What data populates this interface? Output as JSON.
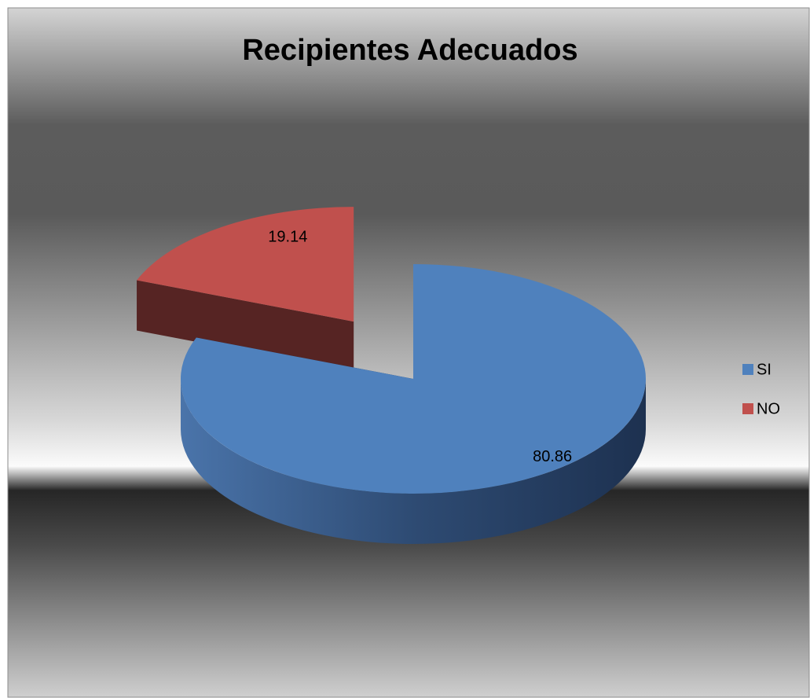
{
  "chart_data": {
    "type": "pie",
    "title": "Recipientes Adecuados",
    "categories": [
      "SI",
      "NO"
    ],
    "values": [
      80.86,
      19.14
    ],
    "colors": [
      "#4f81bd",
      "#c0504d"
    ],
    "legend": "right"
  }
}
